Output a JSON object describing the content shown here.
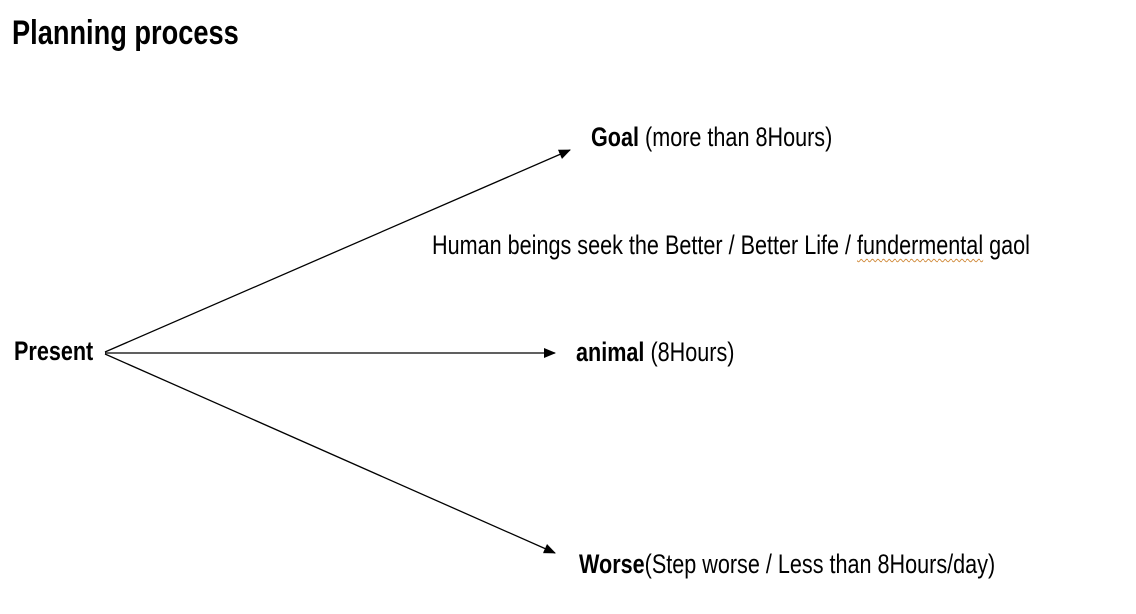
{
  "title": "Planning process",
  "origin": "Present",
  "branches": {
    "goal": {
      "bold": "Goal",
      "detail": " (more than 8Hours)"
    },
    "animal": {
      "bold": "animal",
      "detail": " (8Hours)"
    },
    "worse": {
      "bold": "Worse",
      "detail": "(Step worse / Less than 8Hours/day)"
    }
  },
  "note": {
    "before": "Human beings seek the Better / Better Life / ",
    "misspelled": "fundermental",
    "after": " gaol"
  }
}
